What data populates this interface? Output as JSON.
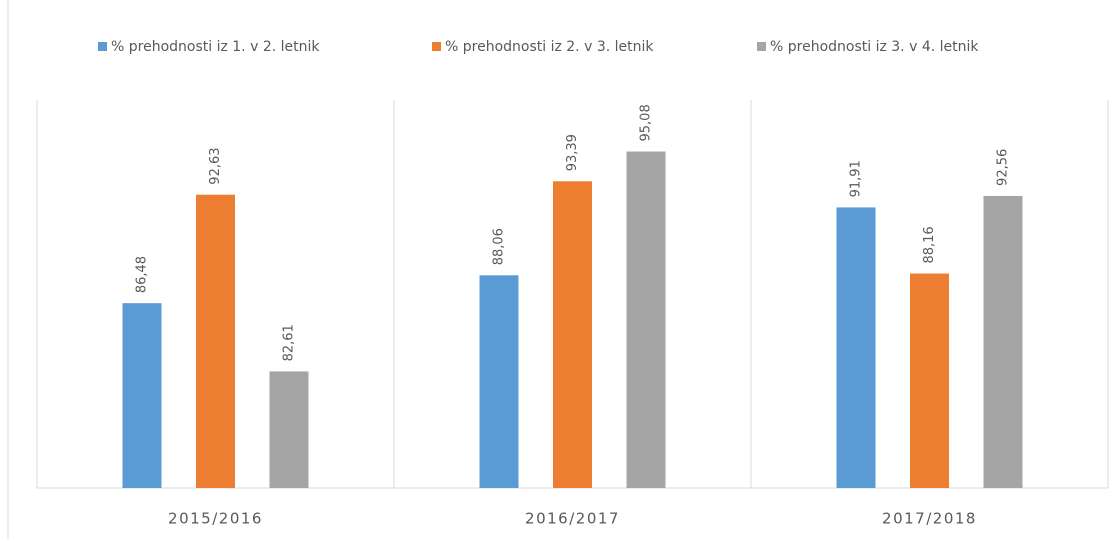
{
  "chart_data": {
    "type": "bar",
    "categories": [
      "2015/2016",
      "2016/2017",
      "2017/2018"
    ],
    "series": [
      {
        "name": "% prehodnosti iz 1. v 2. letnik",
        "color": "#5b9bd5",
        "values": [
          86.48,
          88.06,
          91.91
        ],
        "value_labels": [
          "86,48",
          "88,06",
          "91,91"
        ]
      },
      {
        "name": "% prehodnosti iz 2. v 3. letnik",
        "color": "#ed7d31",
        "values": [
          92.63,
          93.39,
          88.16
        ],
        "value_labels": [
          "92,63",
          "93,39",
          "88,16"
        ]
      },
      {
        "name": "% prehodnosti iz 3. v 4. letnik",
        "color": "#a5a5a5",
        "values": [
          82.61,
          95.08,
          92.56
        ],
        "value_labels": [
          "82,61",
          "95,08",
          "92,56"
        ]
      }
    ],
    "ylim": [
      76,
      98
    ]
  }
}
